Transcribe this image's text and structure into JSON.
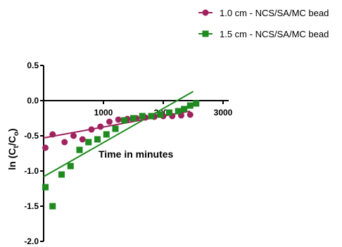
{
  "chart_data": {
    "type": "scatter",
    "xlabel": "Time in minutes",
    "ylabel_main": "ln (C",
    "ylabel_sub1": "t",
    "ylabel_mid": "/C",
    "ylabel_sub2": "o",
    "ylabel_end": ")",
    "xlim": [
      -200,
      3300
    ],
    "ylim": [
      -2.0,
      0.5
    ],
    "x_ticks": [
      1000,
      2000,
      3000
    ],
    "x_tick_labels": [
      "1000",
      "2000",
      "3000"
    ],
    "y_ticks": [
      0.5,
      0.0,
      -0.5,
      -1.0,
      -1.5,
      -2.0
    ],
    "y_tick_labels": [
      "0.5",
      "0.0",
      "-0.5",
      "-1.0",
      "-1.5",
      "-2.0"
    ],
    "legend_position": "top-right",
    "series": [
      {
        "name": "1.0 cm - NCS/SA/MC bead",
        "color": "#a0225e",
        "marker": "circle",
        "x": [
          30,
          150,
          350,
          500,
          650,
          800,
          950,
          1100,
          1250,
          1400,
          1550,
          1700,
          1850,
          2000,
          2150,
          2300,
          2450
        ],
        "y": [
          -0.67,
          -0.48,
          -0.59,
          -0.5,
          -0.55,
          -0.41,
          -0.37,
          -0.3,
          -0.27,
          -0.26,
          -0.25,
          -0.24,
          -0.23,
          -0.22,
          -0.22,
          -0.21,
          -0.2
        ],
        "fit": {
          "x": [
            0,
            2450
          ],
          "y": [
            -0.53,
            -0.15
          ]
        }
      },
      {
        "name": "1.5 cm - NCS/SA/MC bead",
        "color": "#1f8a1f",
        "marker": "square",
        "x": [
          30,
          150,
          300,
          450,
          600,
          750,
          900,
          1050,
          1200,
          1350,
          1500,
          1650,
          1800,
          1950,
          2100,
          2250,
          2350,
          2450,
          2550
        ],
        "y": [
          -1.23,
          -1.5,
          -1.05,
          -0.93,
          -0.7,
          -0.59,
          -0.55,
          -0.48,
          -0.4,
          -0.28,
          -0.25,
          -0.22,
          -0.22,
          -0.2,
          -0.17,
          -0.15,
          -0.12,
          -0.07,
          -0.04
        ],
        "fit": {
          "x": [
            0,
            2500
          ],
          "y": [
            -1.08,
            0.13
          ]
        }
      }
    ]
  }
}
